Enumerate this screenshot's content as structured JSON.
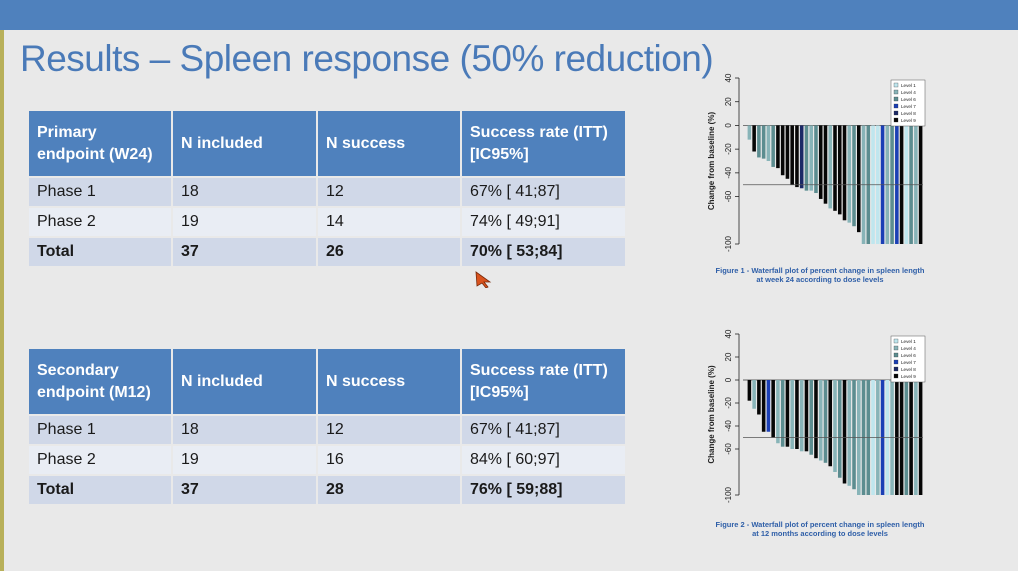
{
  "slide": {
    "title": "Results – Spleen response (50% reduction)"
  },
  "primary_table": {
    "headers": [
      "Primary endpoint (W24)",
      "N included",
      "N success",
      "Success rate (ITT) [IC95%]"
    ],
    "rows": [
      [
        "Phase 1",
        "18",
        "12",
        "67% [ 41;87]"
      ],
      [
        "Phase 2",
        "19",
        "14",
        "74% [ 49;91]"
      ],
      [
        "Total",
        "37",
        "26",
        "70% [ 53;84]"
      ]
    ]
  },
  "secondary_table": {
    "headers": [
      "Secondary endpoint (M12)",
      "N included",
      "N success",
      "Success rate (ITT) [IC95%]"
    ],
    "rows": [
      [
        "Phase 1",
        "18",
        "12",
        "67% [ 41;87]"
      ],
      [
        "Phase 2",
        "19",
        "16",
        "84% [ 60;97]"
      ],
      [
        "Total",
        "37",
        "28",
        "76% [ 59;88]"
      ]
    ]
  },
  "figures": [
    {
      "ylabel": "Change from baseline (%)",
      "caption_line1": "Figure 1 - Waterfall plot of percent change in spleen length",
      "caption_line2": "at week 24 according to dose levels"
    },
    {
      "ylabel": "Change from baseline (%)",
      "caption_line1": "Figure 2 - Waterfall plot of percent change in spleen length",
      "caption_line2": "at 12 months according to dose levels"
    }
  ],
  "chart_data": [
    {
      "type": "bar",
      "ylabel": "Change from baseline (%)",
      "ylim": [
        -100,
        40
      ],
      "yticks": [
        "40",
        "20",
        "0",
        "-20",
        "-40",
        "-60",
        "-100"
      ],
      "reference_line": -50,
      "legend": [
        "Level 1",
        "Level 4",
        "Level 6",
        "Level 7",
        "Level 8",
        "Level 9"
      ],
      "legend_placement": "top-right",
      "level_colors": {
        "Level 1": "#bfe6ee",
        "Level 4": "#88b4b8",
        "Level 6": "#5c8d90",
        "Level 7": "#1b3fb5",
        "Level 8": "#1a2866",
        "Level 9": "#060606"
      },
      "values": [
        -12,
        -22,
        -27,
        -28,
        -30,
        -35,
        -36,
        -42,
        -45,
        -50,
        -52,
        -53,
        -55,
        -55,
        -57,
        -62,
        -66,
        -70,
        -72,
        -75,
        -80,
        -82,
        -85,
        -90,
        -100,
        -100,
        -100,
        -100,
        -100,
        -100,
        -100,
        -100,
        -100,
        -100,
        -100,
        -100,
        -100
      ],
      "levels": [
        "Level 4",
        "Level 9",
        "Level 6",
        "Level 6",
        "Level 4",
        "Level 6",
        "Level 9",
        "Level 9",
        "Level 9",
        "Level 9",
        "Level 9",
        "Level 8",
        "Level 6",
        "Level 4",
        "Level 6",
        "Level 9",
        "Level 9",
        "Level 4",
        "Level 9",
        "Level 9",
        "Level 9",
        "Level 4",
        "Level 6",
        "Level 9",
        "Level 4",
        "Level 6",
        "Level 1",
        "Level 1",
        "Level 7",
        "Level 4",
        "Level 6",
        "Level 7",
        "Level 9",
        "Level 1",
        "Level 6",
        "Level 4",
        "Level 9"
      ]
    },
    {
      "type": "bar",
      "ylabel": "Change from baseline (%)",
      "ylim": [
        -100,
        40
      ],
      "yticks": [
        "40",
        "20",
        "0",
        "-20",
        "-40",
        "-60",
        "-100"
      ],
      "reference_line": -50,
      "legend": [
        "Level 1",
        "Level 4",
        "Level 6",
        "Level 7",
        "Level 8",
        "Level 9"
      ],
      "legend_placement": "top-right",
      "level_colors": {
        "Level 1": "#bfe6ee",
        "Level 4": "#88b4b8",
        "Level 6": "#5c8d90",
        "Level 7": "#1b3fb5",
        "Level 8": "#1a2866",
        "Level 9": "#060606"
      },
      "values": [
        -18,
        -25,
        -30,
        -45,
        -45,
        -50,
        -55,
        -58,
        -58,
        -60,
        -60,
        -62,
        -62,
        -65,
        -68,
        -70,
        -72,
        -75,
        -80,
        -85,
        -90,
        -92,
        -95,
        -100,
        -100,
        -100,
        -100,
        -100,
        -100,
        -100,
        -100,
        -100,
        -100,
        -100,
        -100,
        -100,
        -100
      ],
      "levels": [
        "Level 9",
        "Level 4",
        "Level 9",
        "Level 9",
        "Level 7",
        "Level 9",
        "Level 4",
        "Level 6",
        "Level 9",
        "Level 4",
        "Level 9",
        "Level 4",
        "Level 9",
        "Level 6",
        "Level 9",
        "Level 4",
        "Level 6",
        "Level 9",
        "Level 4",
        "Level 6",
        "Level 9",
        "Level 4",
        "Level 6",
        "Level 4",
        "Level 6",
        "Level 6",
        "Level 1",
        "Level 4",
        "Level 7",
        "Level 1",
        "Level 4",
        "Level 9",
        "Level 9",
        "Level 6",
        "Level 9",
        "Level 4",
        "Level 9"
      ]
    }
  ]
}
